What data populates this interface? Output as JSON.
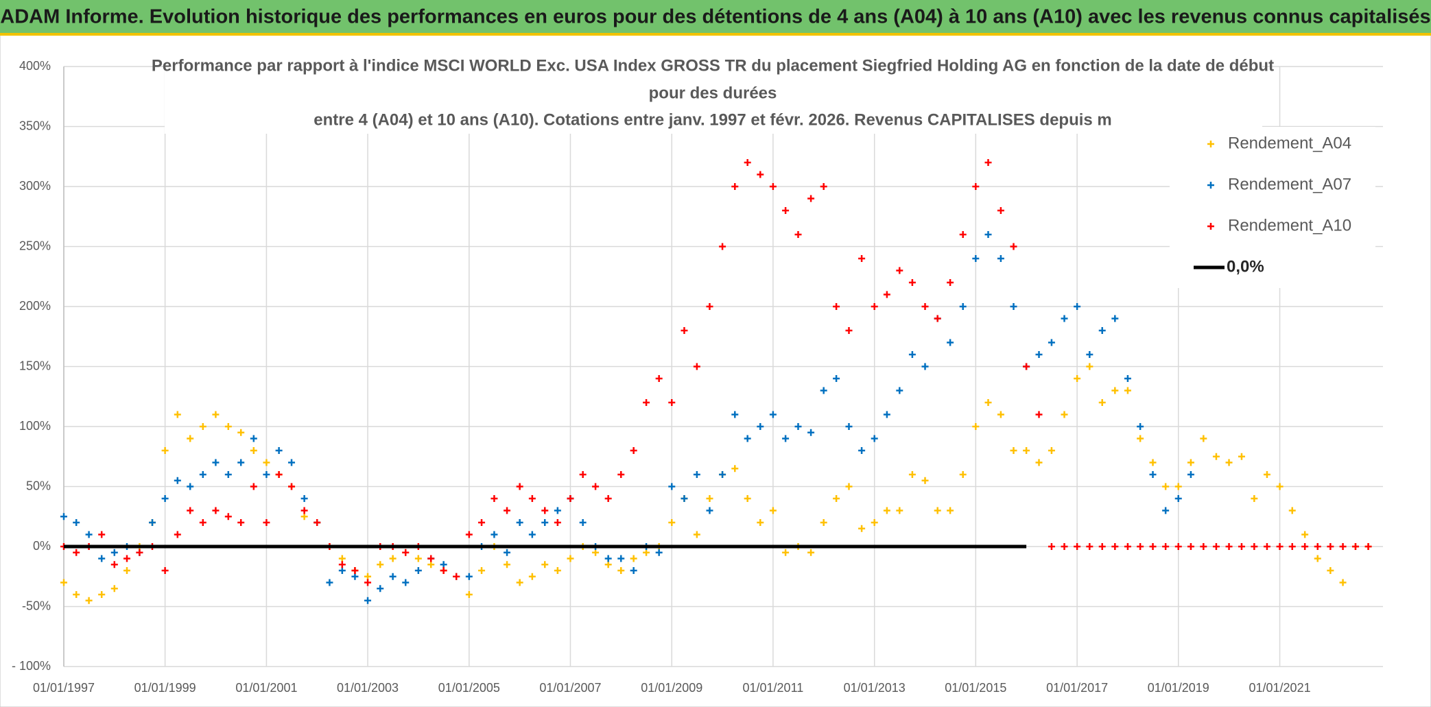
{
  "header": "ADAM Informe. Evolution historique des performances en euros pour des détentions de 4 ans (A04) à 10 ans (A10) avec les revenus connus capitalisés",
  "chart_data": {
    "type": "scatter",
    "title": [
      "Performance par rapport à l'indice MSCI WORLD Exc. USA Index GROSS TR  du placement Siegfried Holding AG en fonction de la date de début",
      "pour des durées",
      "entre 4 (A04) et 10 ans (A10). Cotations entre janv. 1997 et févr. 2026. Revenus CAPITALISES depuis m"
    ],
    "x": [
      "1997-01-01",
      "1997-04-01",
      "1997-07-01",
      "1997-10-01",
      "1998-01-01",
      "1998-04-01",
      "1998-07-01",
      "1998-10-01",
      "1999-01-01",
      "1999-04-01",
      "1999-07-01",
      "1999-10-01",
      "2000-01-01",
      "2000-04-01",
      "2000-07-01",
      "2000-10-01",
      "2001-01-01",
      "2001-04-01",
      "2001-07-01",
      "2001-10-01",
      "2002-01-01",
      "2002-04-01",
      "2002-07-01",
      "2002-10-01",
      "2003-01-01",
      "2003-04-01",
      "2003-07-01",
      "2003-10-01",
      "2004-01-01",
      "2004-04-01",
      "2004-07-01",
      "2004-10-01",
      "2005-01-01",
      "2005-04-01",
      "2005-07-01",
      "2005-10-01",
      "2006-01-01",
      "2006-04-01",
      "2006-07-01",
      "2006-10-01",
      "2007-01-01",
      "2007-04-01",
      "2007-07-01",
      "2007-10-01",
      "2008-01-01",
      "2008-04-01",
      "2008-07-01",
      "2008-10-01",
      "2009-01-01",
      "2009-04-01",
      "2009-07-01",
      "2009-10-01",
      "2010-01-01",
      "2010-04-01",
      "2010-07-01",
      "2010-10-01",
      "2011-01-01",
      "2011-04-01",
      "2011-07-01",
      "2011-10-01",
      "2012-01-01",
      "2012-04-01",
      "2012-07-01",
      "2012-10-01",
      "2013-01-01",
      "2013-04-01",
      "2013-07-01",
      "2013-10-01",
      "2014-01-01",
      "2014-04-01",
      "2014-07-01",
      "2014-10-01",
      "2015-01-01",
      "2015-04-01",
      "2015-07-01",
      "2015-10-01",
      "2016-01-01",
      "2016-04-01",
      "2016-07-01",
      "2016-10-01",
      "2017-01-01",
      "2017-04-01",
      "2017-07-01",
      "2017-10-01",
      "2018-01-01",
      "2018-04-01",
      "2018-07-01",
      "2018-10-01",
      "2019-01-01",
      "2019-04-01",
      "2019-07-01",
      "2019-10-01",
      "2020-01-01",
      "2020-04-01",
      "2020-07-01",
      "2020-10-01",
      "2021-01-01",
      "2021-04-01",
      "2021-07-01",
      "2021-10-01",
      "2022-01-01",
      "2022-04-01",
      "2022-07-01",
      "2022-10-01"
    ],
    "series": [
      {
        "name": "Rendement_A04",
        "color": "#ffc000",
        "style": "cross",
        "values": [
          -30,
          -40,
          -45,
          -40,
          -35,
          -20,
          0,
          20,
          80,
          110,
          90,
          100,
          110,
          100,
          95,
          80,
          70,
          60,
          50,
          25,
          20,
          0,
          -10,
          -20,
          -25,
          -15,
          -10,
          -5,
          -10,
          -15,
          -20,
          -25,
          -40,
          -20,
          0,
          -15,
          -30,
          -25,
          -15,
          -20,
          -10,
          0,
          -5,
          -15,
          -20,
          -10,
          -5,
          0,
          20,
          40,
          10,
          40,
          60,
          65,
          40,
          20,
          30,
          -5,
          0,
          -5,
          20,
          40,
          50,
          15,
          20,
          30,
          30,
          60,
          55,
          30,
          30,
          60,
          100,
          120,
          110,
          80,
          80,
          70,
          80,
          110,
          140,
          150,
          120,
          130,
          130,
          90,
          70,
          50,
          50,
          70,
          90,
          75,
          70,
          75,
          40,
          60,
          50,
          30,
          10,
          -10,
          -20,
          -30,
          0,
          0
        ]
      },
      {
        "name": "Rendement_A07",
        "color": "#0070c0",
        "style": "cross",
        "values": [
          25,
          20,
          10,
          -10,
          -5,
          0,
          -5,
          20,
          40,
          55,
          50,
          60,
          70,
          60,
          70,
          90,
          60,
          80,
          70,
          40,
          20,
          -30,
          -20,
          -25,
          -45,
          -35,
          -25,
          -30,
          -20,
          -10,
          -15,
          -25,
          -25,
          0,
          10,
          -5,
          20,
          10,
          20,
          30,
          40,
          20,
          0,
          -10,
          -10,
          -20,
          0,
          -5,
          50,
          40,
          60,
          30,
          60,
          110,
          90,
          100,
          110,
          90,
          100,
          95,
          130,
          140,
          100,
          80,
          90,
          110,
          130,
          160,
          150,
          190,
          170,
          200,
          240,
          260,
          240,
          200,
          150,
          160,
          170,
          190,
          200,
          160,
          180,
          190,
          140,
          100,
          60,
          30,
          40,
          60,
          null,
          null,
          null,
          null,
          null,
          null,
          null,
          null,
          null,
          null,
          null,
          null,
          null,
          null
        ]
      },
      {
        "name": "Rendement_A10",
        "color": "#ff0000",
        "style": "cross",
        "values": [
          0,
          -5,
          0,
          10,
          -15,
          -10,
          -5,
          0,
          -20,
          10,
          30,
          20,
          30,
          25,
          20,
          50,
          20,
          60,
          50,
          30,
          20,
          0,
          -15,
          -20,
          -30,
          0,
          0,
          -5,
          0,
          -10,
          -20,
          -25,
          10,
          20,
          40,
          30,
          50,
          40,
          30,
          20,
          40,
          60,
          50,
          40,
          60,
          80,
          120,
          140,
          120,
          180,
          150,
          200,
          250,
          300,
          320,
          310,
          300,
          280,
          260,
          290,
          300,
          200,
          180,
          240,
          200,
          210,
          230,
          220,
          200,
          190,
          220,
          260,
          300,
          320,
          280,
          250,
          150,
          110,
          0,
          0,
          0,
          0,
          0,
          0,
          0,
          0,
          0,
          0,
          0,
          0,
          0,
          0,
          0,
          0,
          0,
          0,
          0,
          0,
          0,
          0,
          0,
          0,
          0,
          0
        ]
      },
      {
        "name": "0,0%",
        "color": "#000000",
        "style": "line",
        "values": [
          0,
          0,
          0,
          0,
          0,
          0,
          0,
          0,
          0,
          0,
          0,
          0,
          0,
          0,
          0,
          0,
          0,
          0,
          0,
          0,
          0,
          0,
          0,
          0,
          0,
          0,
          0,
          0,
          0,
          0,
          0,
          0,
          0,
          0,
          0,
          0,
          0,
          0,
          0,
          0,
          0,
          0,
          0,
          0,
          0,
          0,
          0,
          0,
          0,
          0,
          0,
          0,
          0,
          0,
          0,
          0,
          0,
          0,
          0,
          0,
          0,
          0,
          0,
          0,
          0,
          0,
          0,
          0,
          0,
          0,
          0,
          0,
          0,
          0,
          0,
          0,
          0,
          null,
          null,
          null,
          null,
          null,
          null,
          null,
          null,
          null,
          null,
          null,
          null,
          null,
          null,
          null,
          null,
          null,
          null,
          null,
          null,
          null,
          null,
          null,
          null,
          null,
          null,
          null
        ]
      }
    ],
    "xlim": [
      "1997-01-01",
      "2023-01-15"
    ],
    "xticks": [
      {
        "value": "1997-01-01",
        "label": "01/01/1997"
      },
      {
        "value": "1999-01-01",
        "label": "01/01/1999"
      },
      {
        "value": "2001-01-01",
        "label": "01/01/2001"
      },
      {
        "value": "2003-01-01",
        "label": "01/01/2003"
      },
      {
        "value": "2005-01-01",
        "label": "01/01/2005"
      },
      {
        "value": "2007-01-01",
        "label": "01/01/2007"
      },
      {
        "value": "2009-01-01",
        "label": "01/01/2009"
      },
      {
        "value": "2011-01-01",
        "label": "01/01/2011"
      },
      {
        "value": "2013-01-01",
        "label": "01/01/2013"
      },
      {
        "value": "2015-01-01",
        "label": "01/01/2015"
      },
      {
        "value": "2017-01-01",
        "label": "01/01/2017"
      },
      {
        "value": "2019-01-01",
        "label": "01/01/2019"
      },
      {
        "value": "2021-01-01",
        "label": "01/01/2021"
      }
    ],
    "ylim": [
      -100,
      400
    ],
    "yticks": [
      {
        "value": -100,
        "label": "- 100%"
      },
      {
        "value": -50,
        "label": "-50%"
      },
      {
        "value": 0,
        "label": "0%"
      },
      {
        "value": 50,
        "label": "50%"
      },
      {
        "value": 100,
        "label": "100%"
      },
      {
        "value": 150,
        "label": "150%"
      },
      {
        "value": 200,
        "label": "200%"
      },
      {
        "value": 250,
        "label": "250%"
      },
      {
        "value": 300,
        "label": "300%"
      },
      {
        "value": 350,
        "label": "350%"
      },
      {
        "value": 400,
        "label": "400%"
      }
    ],
    "grid": true,
    "legend": "top-right"
  }
}
